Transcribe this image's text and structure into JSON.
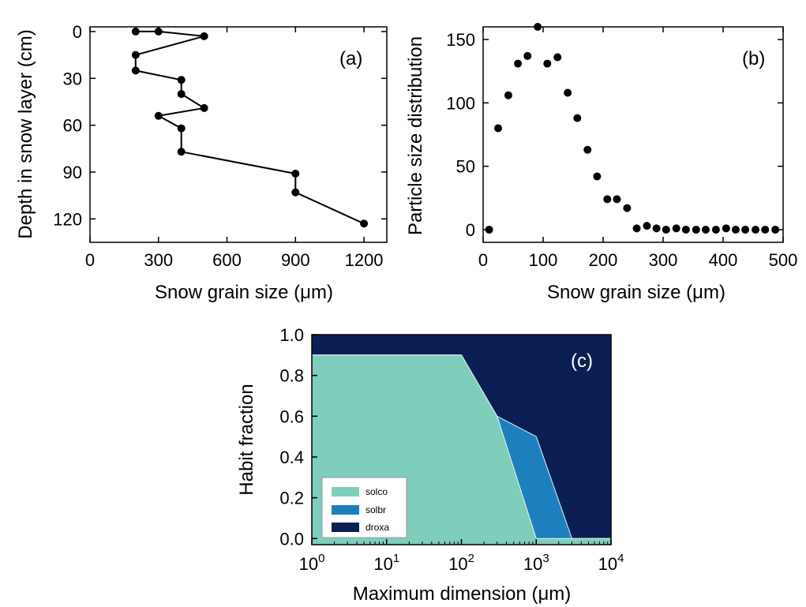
{
  "colors": {
    "solco": "#7fcdbb",
    "solbr": "#1d7fbe",
    "droxa": "#0c1f55",
    "marker": "#000000"
  },
  "chart_data": [
    {
      "id": "a",
      "type": "line",
      "panel_label": "(a)",
      "xlabel": "Snow grain size (μm)",
      "ylabel": "Depth in snow layer (cm)",
      "xlim": [
        0,
        1300
      ],
      "ylim": [
        -3,
        135
      ],
      "y_inverted": true,
      "xticks": [
        0,
        300,
        600,
        900,
        1200
      ],
      "yticks": [
        0,
        30,
        60,
        90,
        120
      ],
      "series": [
        {
          "x": [
            200,
            300,
            500,
            200,
            200,
            400,
            400,
            500,
            300,
            400,
            400,
            900,
            900,
            1200
          ],
          "y": [
            0,
            0,
            3,
            15,
            25,
            31,
            40,
            49,
            54,
            62,
            77,
            91,
            103,
            123
          ]
        }
      ]
    },
    {
      "id": "b",
      "type": "scatter",
      "panel_label": "(b)",
      "xlabel": "Snow grain size (μm)",
      "ylabel": "Particle size distribution",
      "xlim": [
        0,
        500
      ],
      "ylim": [
        -10,
        160
      ],
      "xticks": [
        0,
        100,
        200,
        300,
        400,
        500
      ],
      "yticks": [
        0,
        50,
        100,
        150
      ],
      "series": [
        {
          "x": [
            10,
            25,
            42,
            58,
            74,
            91,
            107,
            124,
            141,
            157,
            174,
            190,
            207,
            223,
            240,
            256,
            273,
            289,
            305,
            322,
            338,
            355,
            371,
            388,
            405,
            421,
            437,
            454,
            470,
            487
          ],
          "y": [
            0,
            80,
            106,
            131,
            137,
            163,
            131,
            136,
            108,
            88,
            63,
            42,
            24,
            24,
            17,
            1,
            3,
            1,
            0,
            1,
            0,
            0,
            0,
            0,
            1,
            0,
            0,
            0,
            0,
            0
          ]
        }
      ]
    },
    {
      "id": "c",
      "type": "area",
      "panel_label": "(c)",
      "xlabel": "Maximum dimension (μm)",
      "ylabel": "Habit fraction",
      "x_scale": "log",
      "xlim": [
        1,
        10000
      ],
      "ylim": [
        -0.03,
        1.0
      ],
      "xtick_values": [
        1,
        10,
        100,
        1000,
        10000
      ],
      "xtick_bases": [
        "10",
        "10",
        "10",
        "10",
        "10"
      ],
      "xtick_exponents": [
        "0",
        "1",
        "2",
        "3",
        "4"
      ],
      "yticks": [
        0.0,
        0.2,
        0.4,
        0.6,
        0.8,
        1.0
      ],
      "ytick_labels": [
        "0.0",
        "0.2",
        "0.4",
        "0.6",
        "0.8",
        "1.0"
      ],
      "x": [
        1,
        100,
        300,
        1000,
        3000,
        10000
      ],
      "series": [
        {
          "name": "solco",
          "values": [
            0.9,
            0.9,
            0.6,
            0.0,
            0.0,
            0.0
          ]
        },
        {
          "name": "solbr",
          "values": [
            0.0,
            0.0,
            0.0,
            0.5,
            0.0,
            0.0
          ]
        },
        {
          "name": "droxa",
          "values": [
            0.1,
            0.1,
            0.4,
            0.5,
            1.0,
            1.0
          ]
        }
      ],
      "legend": [
        "solco",
        "solbr",
        "droxa"
      ],
      "legend_position": "bottom-left"
    }
  ]
}
